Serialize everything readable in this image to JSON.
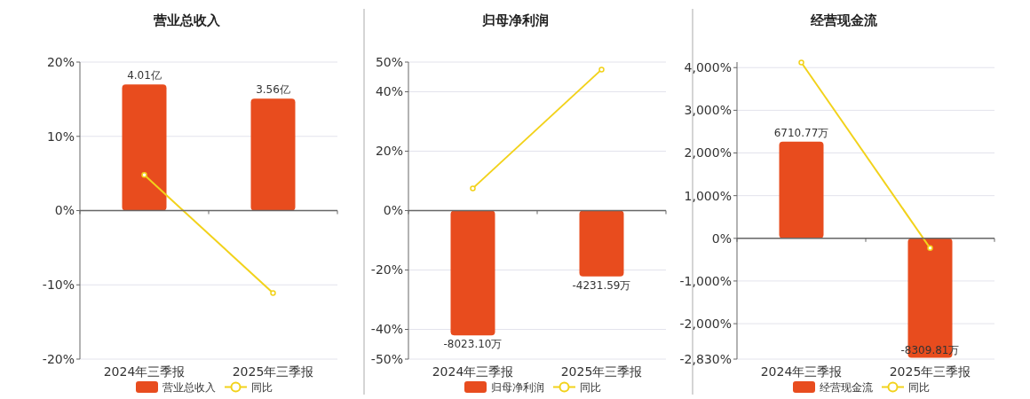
{
  "chart_data": [
    {
      "type": "bar",
      "title": "营业总收入",
      "categories": [
        "2024年三季报",
        "2025年三季报"
      ],
      "series": [
        {
          "name": "营业总收入",
          "axis": "y2",
          "color": "#e84c1e",
          "values": [
            4.01,
            3.56
          ],
          "value_labels": [
            "4.01亿",
            "3.56亿"
          ]
        },
        {
          "name": "同比",
          "type": "line",
          "color": "#f2d21b",
          "values": [
            4.8,
            -11.1
          ]
        }
      ],
      "ylim": [
        -20,
        20
      ],
      "yticks": [
        {
          "value": -20,
          "label": "-20%"
        },
        {
          "value": -10,
          "label": "-10%"
        },
        {
          "value": 0,
          "label": "0%"
        },
        {
          "value": 10,
          "label": "10%"
        },
        {
          "value": 20,
          "label": "20%"
        }
      ],
      "y2lim": [
        -4.72,
        4.72
      ],
      "grid": "y",
      "legend": "bottom",
      "marker": "circle"
    },
    {
      "type": "bar",
      "title": "归母净利润",
      "categories": [
        "2024年三季报",
        "2025年三季报"
      ],
      "series": [
        {
          "name": "归母净利润",
          "axis": "y2",
          "color": "#e84c1e",
          "values": [
            -8023.1,
            -4231.59
          ],
          "value_labels": [
            "-8023.10万",
            "-4231.59万"
          ]
        },
        {
          "name": "同比",
          "type": "line",
          "color": "#f2d21b",
          "values": [
            7.5,
            47.5
          ]
        }
      ],
      "ylim": [
        -50,
        50
      ],
      "yticks": [
        {
          "value": -50,
          "label": "-50%"
        },
        {
          "value": -40,
          "label": "-40%"
        },
        {
          "value": -20,
          "label": "-20%"
        },
        {
          "value": 0,
          "label": "0%"
        },
        {
          "value": 20,
          "label": "20%"
        },
        {
          "value": 40,
          "label": "40%"
        },
        {
          "value": 50,
          "label": "50%"
        }
      ],
      "y2lim": [
        -9550,
        9550
      ],
      "grid": "y",
      "legend": "bottom",
      "marker": "circle"
    },
    {
      "type": "bar",
      "title": "经营现金流",
      "categories": [
        "2024年三季报",
        "2025年三季报"
      ],
      "series": [
        {
          "name": "经营现金流",
          "axis": "y2",
          "color": "#e84c1e",
          "values": [
            6710.77,
            -8309.81
          ],
          "value_labels": [
            "6710.77万",
            "-8309.81万"
          ]
        },
        {
          "name": "同比",
          "type": "line",
          "color": "#f2d21b",
          "values": [
            4120,
            -230
          ]
        }
      ],
      "ylim": [
        -2830,
        4130
      ],
      "yticks": [
        {
          "value": -2830,
          "label": "-2,830%"
        },
        {
          "value": -2000,
          "label": "-2,000%"
        },
        {
          "value": -1000,
          "label": "-1,000%"
        },
        {
          "value": 0,
          "label": "0%"
        },
        {
          "value": 1000,
          "label": "1,000%"
        },
        {
          "value": 2000,
          "label": "2,000%"
        },
        {
          "value": 3000,
          "label": "3,000%"
        },
        {
          "value": 4000,
          "label": "4,000%"
        }
      ],
      "y2lim": [
        -8400,
        12250
      ],
      "grid": "y",
      "legend": "bottom",
      "marker": "circle"
    }
  ]
}
